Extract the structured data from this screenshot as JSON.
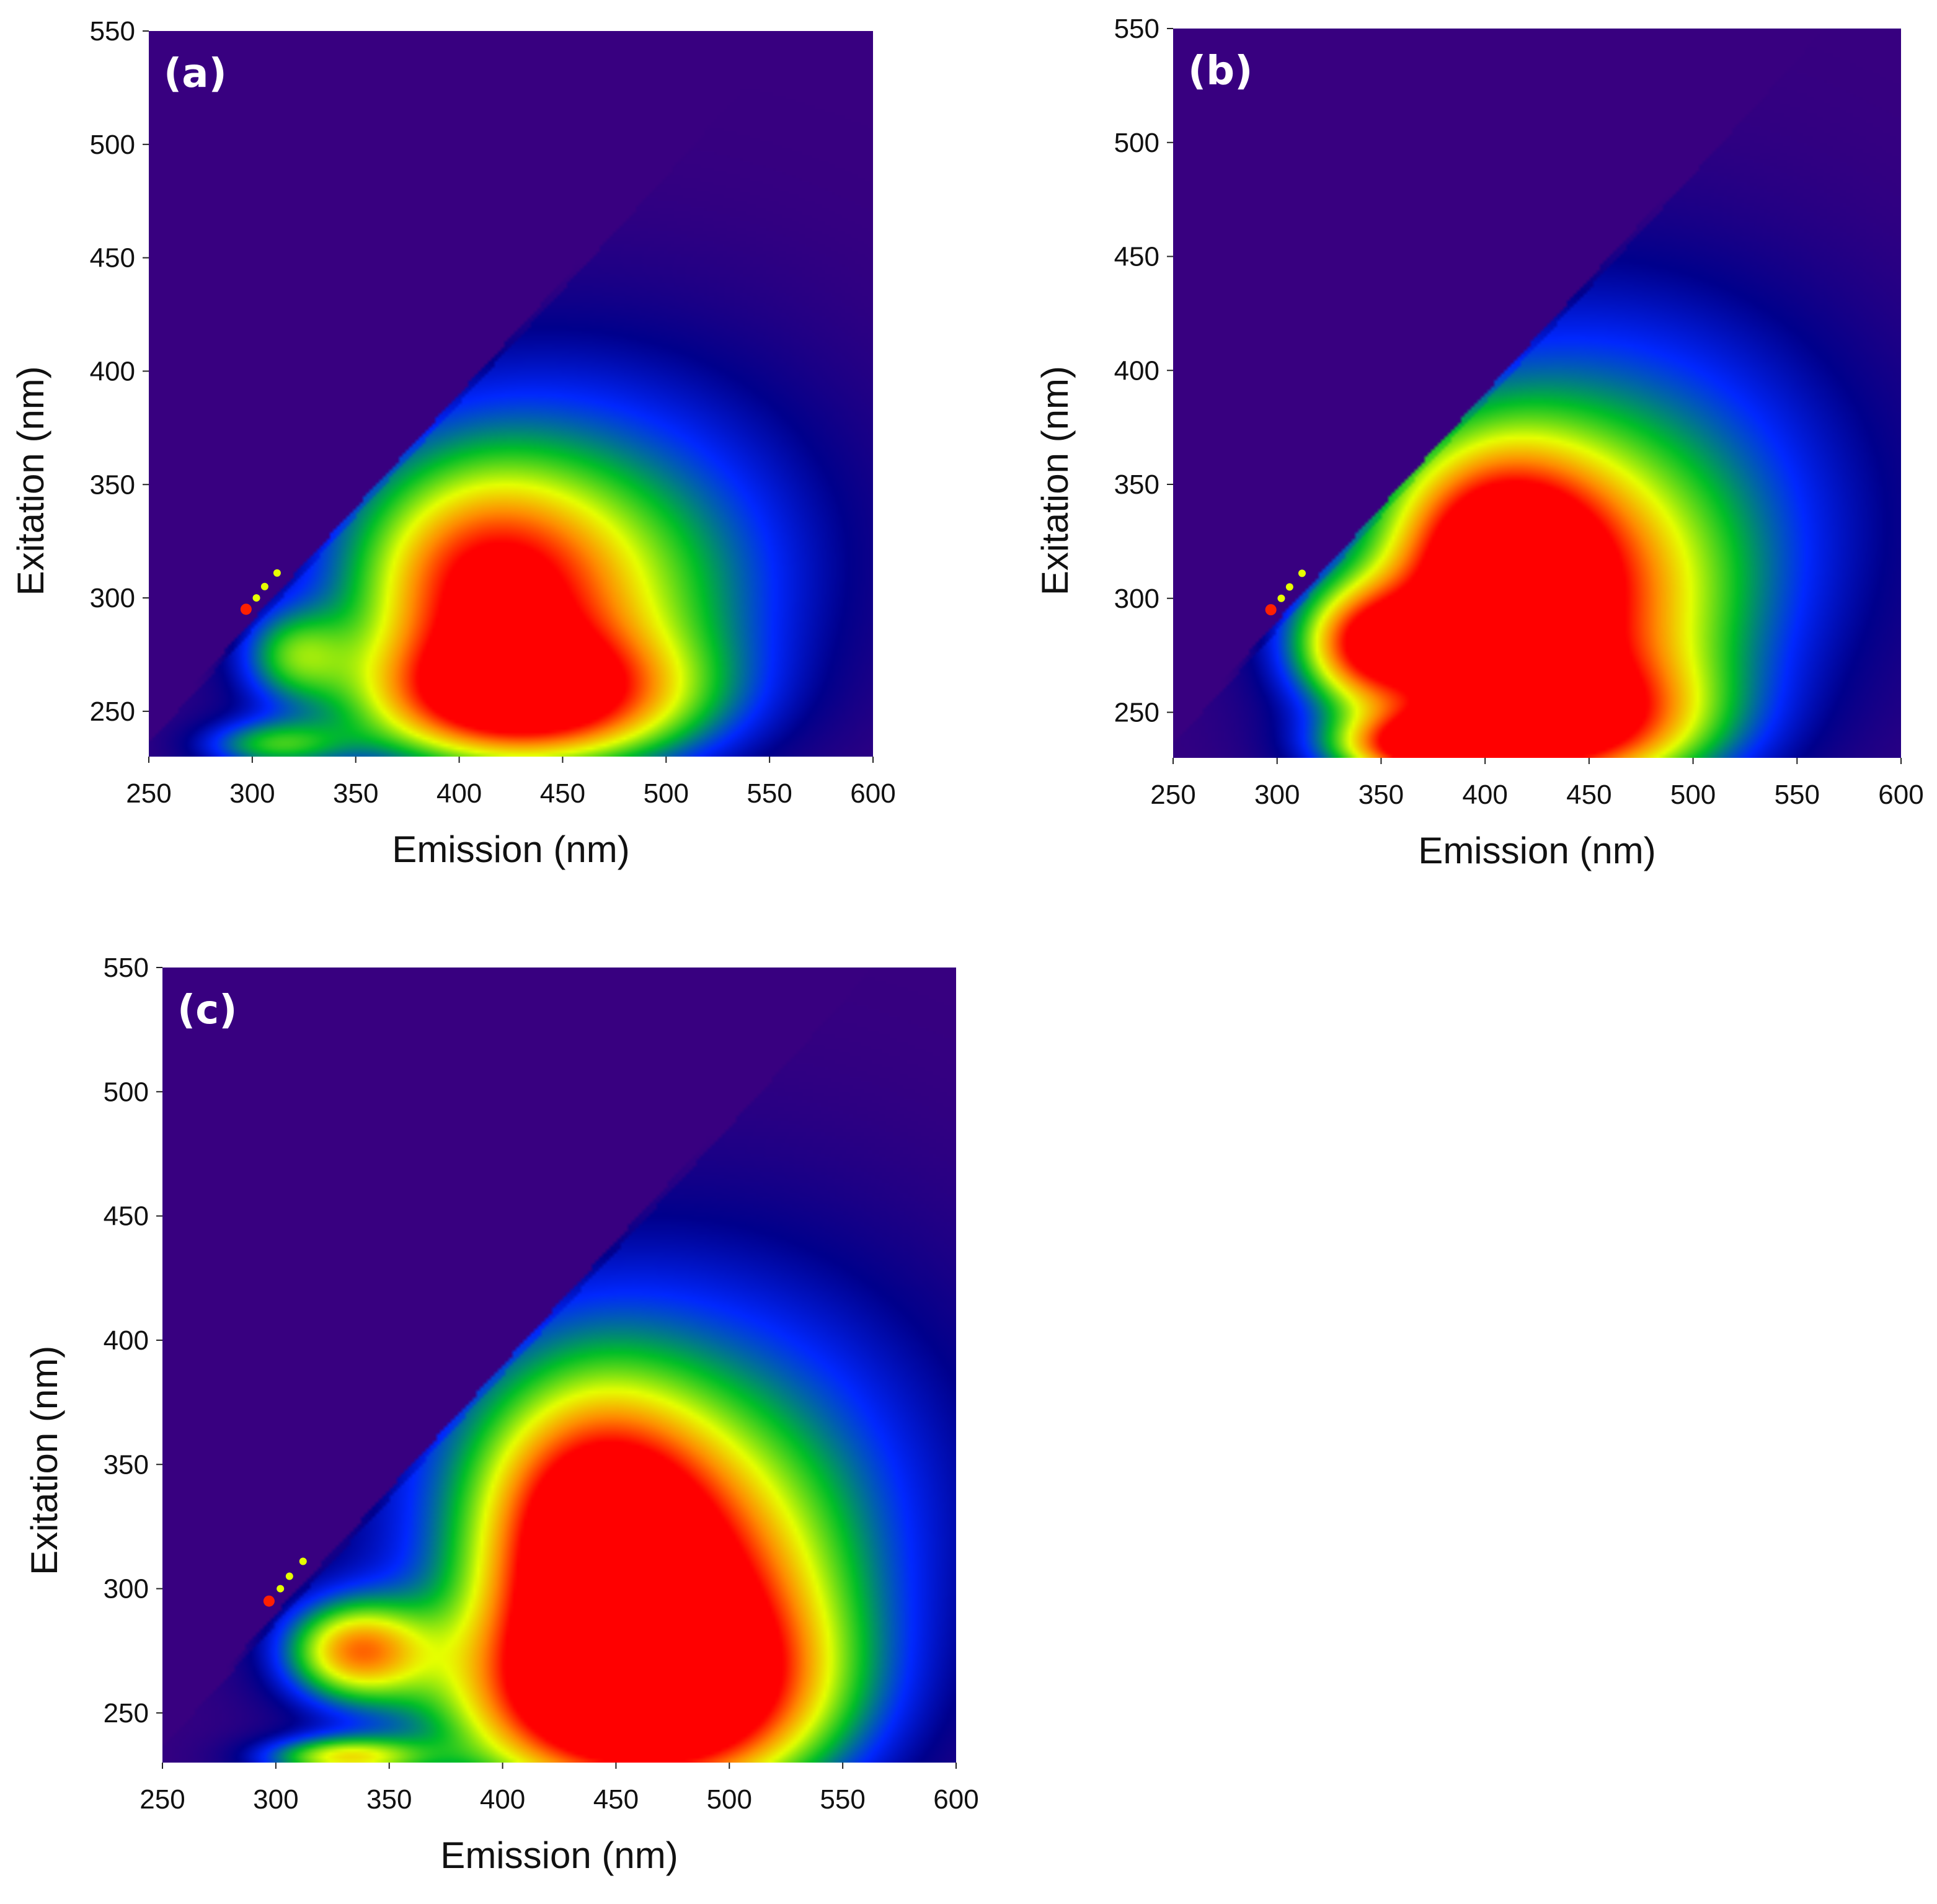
{
  "chart_data": [
    {
      "type": "heatmap",
      "panel_label": "(a)",
      "title": "",
      "xlabel": "Emission (nm)",
      "ylabel": "Exitation (nm)",
      "xlim": [
        250,
        600
      ],
      "ylim": [
        230,
        550
      ],
      "xticks": [
        250,
        300,
        350,
        400,
        450,
        500,
        550,
        600
      ],
      "yticks": [
        250,
        300,
        350,
        400,
        450,
        500,
        550
      ],
      "colormap": [
        "#380080",
        "#0000ff",
        "#00c000",
        "#ffff00",
        "#ff0000"
      ],
      "peaks": [
        {
          "emission": 430,
          "excitation": 255,
          "intensity": 0.85,
          "sx": 55,
          "sy": 20
        },
        {
          "emission": 410,
          "excitation": 305,
          "intensity": 0.55,
          "sx": 40,
          "sy": 35
        },
        {
          "emission": 455,
          "excitation": 290,
          "intensity": 0.35,
          "sx": 60,
          "sy": 40
        },
        {
          "emission": 320,
          "excitation": 275,
          "intensity": 0.35,
          "sx": 18,
          "sy": 14
        },
        {
          "emission": 310,
          "excitation": 235,
          "intensity": 0.4,
          "sx": 25,
          "sy": 8
        },
        {
          "emission": 445,
          "excitation": 330,
          "intensity": 0.35,
          "sx": 90,
          "sy": 60
        }
      ]
    },
    {
      "type": "heatmap",
      "panel_label": "(b)",
      "title": "",
      "xlabel": "Emission (nm)",
      "ylabel": "Exitation (nm)",
      "xlim": [
        250,
        600
      ],
      "ylim": [
        230,
        550
      ],
      "xticks": [
        250,
        300,
        350,
        400,
        450,
        500,
        550,
        600
      ],
      "yticks": [
        250,
        300,
        350,
        400,
        450,
        500,
        550
      ],
      "colormap": [
        "#380080",
        "#0000ff",
        "#00c000",
        "#ffff00",
        "#ff0000"
      ],
      "peaks": [
        {
          "emission": 345,
          "excitation": 280,
          "intensity": 0.8,
          "sx": 25,
          "sy": 18
        },
        {
          "emission": 405,
          "excitation": 315,
          "intensity": 0.75,
          "sx": 35,
          "sy": 35
        },
        {
          "emission": 430,
          "excitation": 245,
          "intensity": 0.8,
          "sx": 50,
          "sy": 20
        },
        {
          "emission": 370,
          "excitation": 235,
          "intensity": 0.75,
          "sx": 30,
          "sy": 10
        },
        {
          "emission": 440,
          "excitation": 290,
          "intensity": 0.6,
          "sx": 55,
          "sy": 45
        },
        {
          "emission": 450,
          "excitation": 340,
          "intensity": 0.4,
          "sx": 90,
          "sy": 70
        }
      ]
    },
    {
      "type": "heatmap",
      "panel_label": "(c)",
      "title": "",
      "xlabel": "Emission (nm)",
      "ylabel": "Exitation (nm)",
      "xlim": [
        250,
        600
      ],
      "ylim": [
        230,
        550
      ],
      "xticks": [
        250,
        300,
        350,
        400,
        450,
        500,
        550,
        600
      ],
      "yticks": [
        250,
        300,
        350,
        400,
        450,
        500,
        550
      ],
      "colormap": [
        "#380080",
        "#0000ff",
        "#00c000",
        "#ffff00",
        "#ff0000"
      ],
      "peaks": [
        {
          "emission": 455,
          "excitation": 255,
          "intensity": 1.0,
          "sx": 55,
          "sy": 28
        },
        {
          "emission": 440,
          "excitation": 320,
          "intensity": 0.85,
          "sx": 35,
          "sy": 40
        },
        {
          "emission": 335,
          "excitation": 275,
          "intensity": 0.7,
          "sx": 22,
          "sy": 14
        },
        {
          "emission": 330,
          "excitation": 232,
          "intensity": 0.6,
          "sx": 25,
          "sy": 6
        },
        {
          "emission": 490,
          "excitation": 290,
          "intensity": 0.55,
          "sx": 45,
          "sy": 45
        },
        {
          "emission": 470,
          "excitation": 340,
          "intensity": 0.4,
          "sx": 90,
          "sy": 70
        }
      ]
    }
  ]
}
